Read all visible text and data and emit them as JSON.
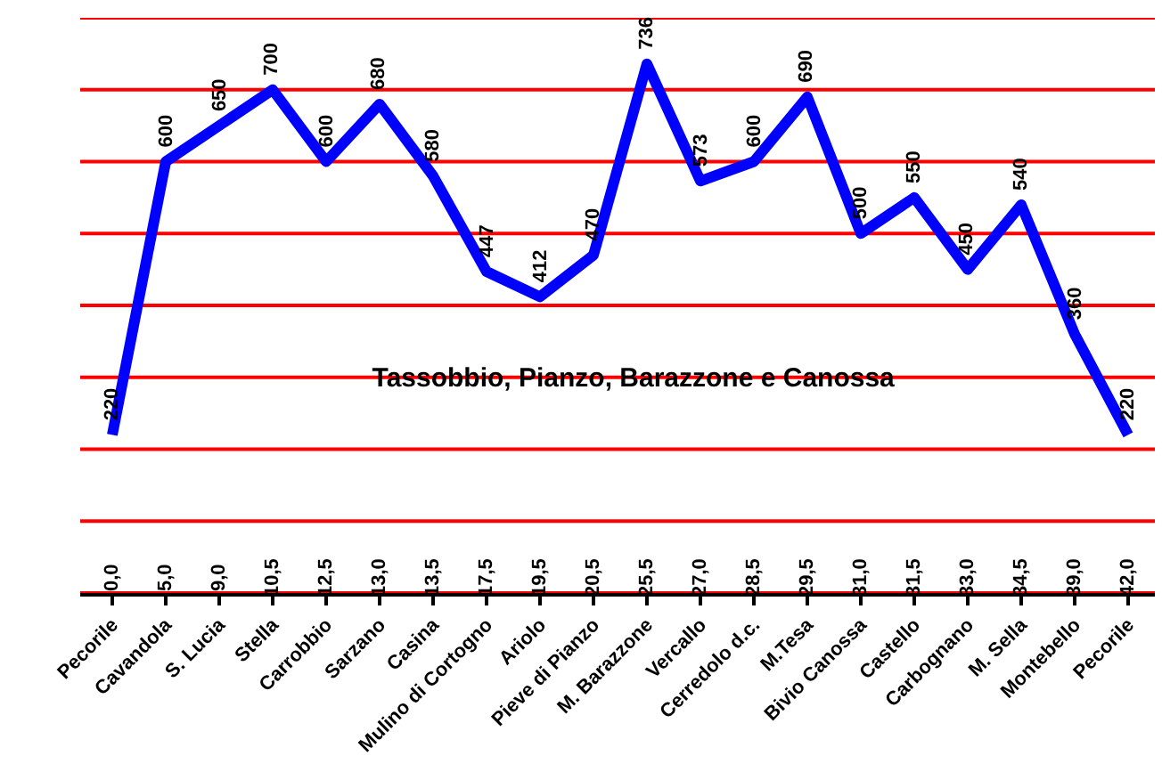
{
  "chart_data": {
    "type": "line",
    "title": "Tassobbio, Pianzo, Barazzone e Canossa",
    "categories": [
      "Pecorile",
      "Cavandola",
      "S. Lucia",
      "Stella",
      "Carrobbio",
      "Sarzano",
      "Casina",
      "Mulino di Cortogno",
      "Ariolo",
      "Pieve di Pianzo",
      "M. Barazzone",
      "Vercallo",
      "Cerredolo d.c.",
      "M.Tesa",
      "Bivio Canossa",
      "Castello",
      "Carbognano",
      "M. Sella",
      "Montebello",
      "Pecorile"
    ],
    "series": [
      {
        "color": "#0000ff",
        "values": [
          220,
          600,
          650,
          700,
          600,
          680,
          580,
          447,
          412,
          470,
          736,
          573,
          600,
          690,
          500,
          550,
          450,
          540,
          360,
          220
        ]
      }
    ],
    "annotations": [
      "0,0",
      "5,0",
      "9,0",
      "10,5",
      "12,5",
      "13,0",
      "13,5",
      "17,5",
      "19,5",
      "20,5",
      "25,5",
      "27,0",
      "28,5",
      "29,5",
      "31,0",
      "31,5",
      "33,0",
      "34,5",
      "39,0",
      "42,0"
    ],
    "data_labels": true,
    "ylim": [
      0,
      800
    ],
    "yticks": [
      {
        "value": 0,
        "label": null
      },
      {
        "value": 100,
        "label": null
      },
      {
        "value": 200,
        "label": null
      },
      {
        "value": 300,
        "label": null
      },
      {
        "value": 400,
        "label": null
      },
      {
        "value": 500,
        "label": null
      },
      {
        "value": 600,
        "label": null
      },
      {
        "value": 700,
        "label": null
      },
      {
        "value": 800,
        "label": null
      }
    ],
    "grid": "y",
    "tick_labels": "x",
    "marker": "none",
    "line_style": "solid"
  }
}
